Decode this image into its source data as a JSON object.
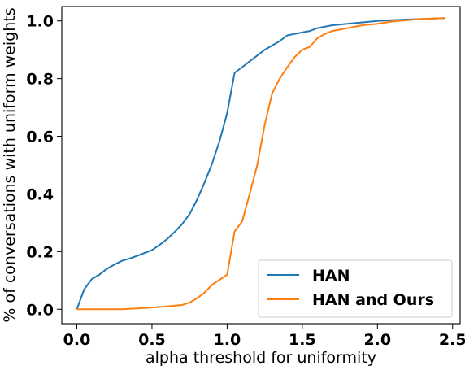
{
  "chart_data": {
    "type": "line",
    "xlabel": "alpha threshold for uniformity",
    "ylabel": "% of conversations with uniform weights",
    "xlim": [
      -0.1,
      2.55
    ],
    "ylim": [
      -0.05,
      1.05
    ],
    "xticks": [
      0.0,
      0.5,
      1.0,
      1.5,
      2.0,
      2.5
    ],
    "xtick_labels": [
      "0.0",
      "0.5",
      "1.0",
      "1.5",
      "2.0",
      "2.5"
    ],
    "yticks": [
      0.0,
      0.2,
      0.4,
      0.6,
      0.8,
      1.0
    ],
    "ytick_labels": [
      "0.0",
      "0.2",
      "0.4",
      "0.6",
      "0.8",
      "1.0"
    ],
    "grid": false,
    "legend_position": "bottom-right",
    "series": [
      {
        "name": "HAN",
        "color": "#1f77b4",
        "x": [
          0.0,
          0.05,
          0.1,
          0.15,
          0.2,
          0.25,
          0.3,
          0.35,
          0.4,
          0.45,
          0.5,
          0.55,
          0.6,
          0.65,
          0.7,
          0.75,
          0.8,
          0.85,
          0.9,
          0.95,
          1.0,
          1.05,
          1.1,
          1.15,
          1.2,
          1.25,
          1.3,
          1.35,
          1.4,
          1.45,
          1.5,
          1.55,
          1.6,
          1.7,
          1.8,
          1.9,
          2.0,
          2.1,
          2.2,
          2.3,
          2.45
        ],
        "values": [
          0.0,
          0.07,
          0.105,
          0.12,
          0.14,
          0.155,
          0.168,
          0.176,
          0.185,
          0.195,
          0.205,
          0.223,
          0.243,
          0.268,
          0.295,
          0.33,
          0.38,
          0.44,
          0.505,
          0.585,
          0.68,
          0.82,
          0.84,
          0.86,
          0.88,
          0.9,
          0.915,
          0.93,
          0.95,
          0.955,
          0.96,
          0.965,
          0.975,
          0.985,
          0.99,
          0.995,
          1.0,
          1.003,
          1.005,
          1.007,
          1.01
        ]
      },
      {
        "name": "HAN and Ours",
        "color": "#ff7f0e",
        "x": [
          0.0,
          0.1,
          0.2,
          0.3,
          0.4,
          0.5,
          0.6,
          0.7,
          0.75,
          0.8,
          0.85,
          0.9,
          0.95,
          1.0,
          1.05,
          1.1,
          1.15,
          1.2,
          1.25,
          1.3,
          1.35,
          1.4,
          1.45,
          1.5,
          1.55,
          1.6,
          1.65,
          1.7,
          1.8,
          1.9,
          2.0,
          2.1,
          2.2,
          2.3,
          2.45
        ],
        "values": [
          0.0,
          0.0,
          0.0,
          0.0,
          0.003,
          0.006,
          0.01,
          0.015,
          0.023,
          0.038,
          0.058,
          0.085,
          0.103,
          0.12,
          0.27,
          0.305,
          0.4,
          0.5,
          0.64,
          0.75,
          0.8,
          0.84,
          0.875,
          0.9,
          0.91,
          0.94,
          0.955,
          0.965,
          0.975,
          0.985,
          0.99,
          0.998,
          1.003,
          1.007,
          1.01
        ]
      }
    ]
  }
}
